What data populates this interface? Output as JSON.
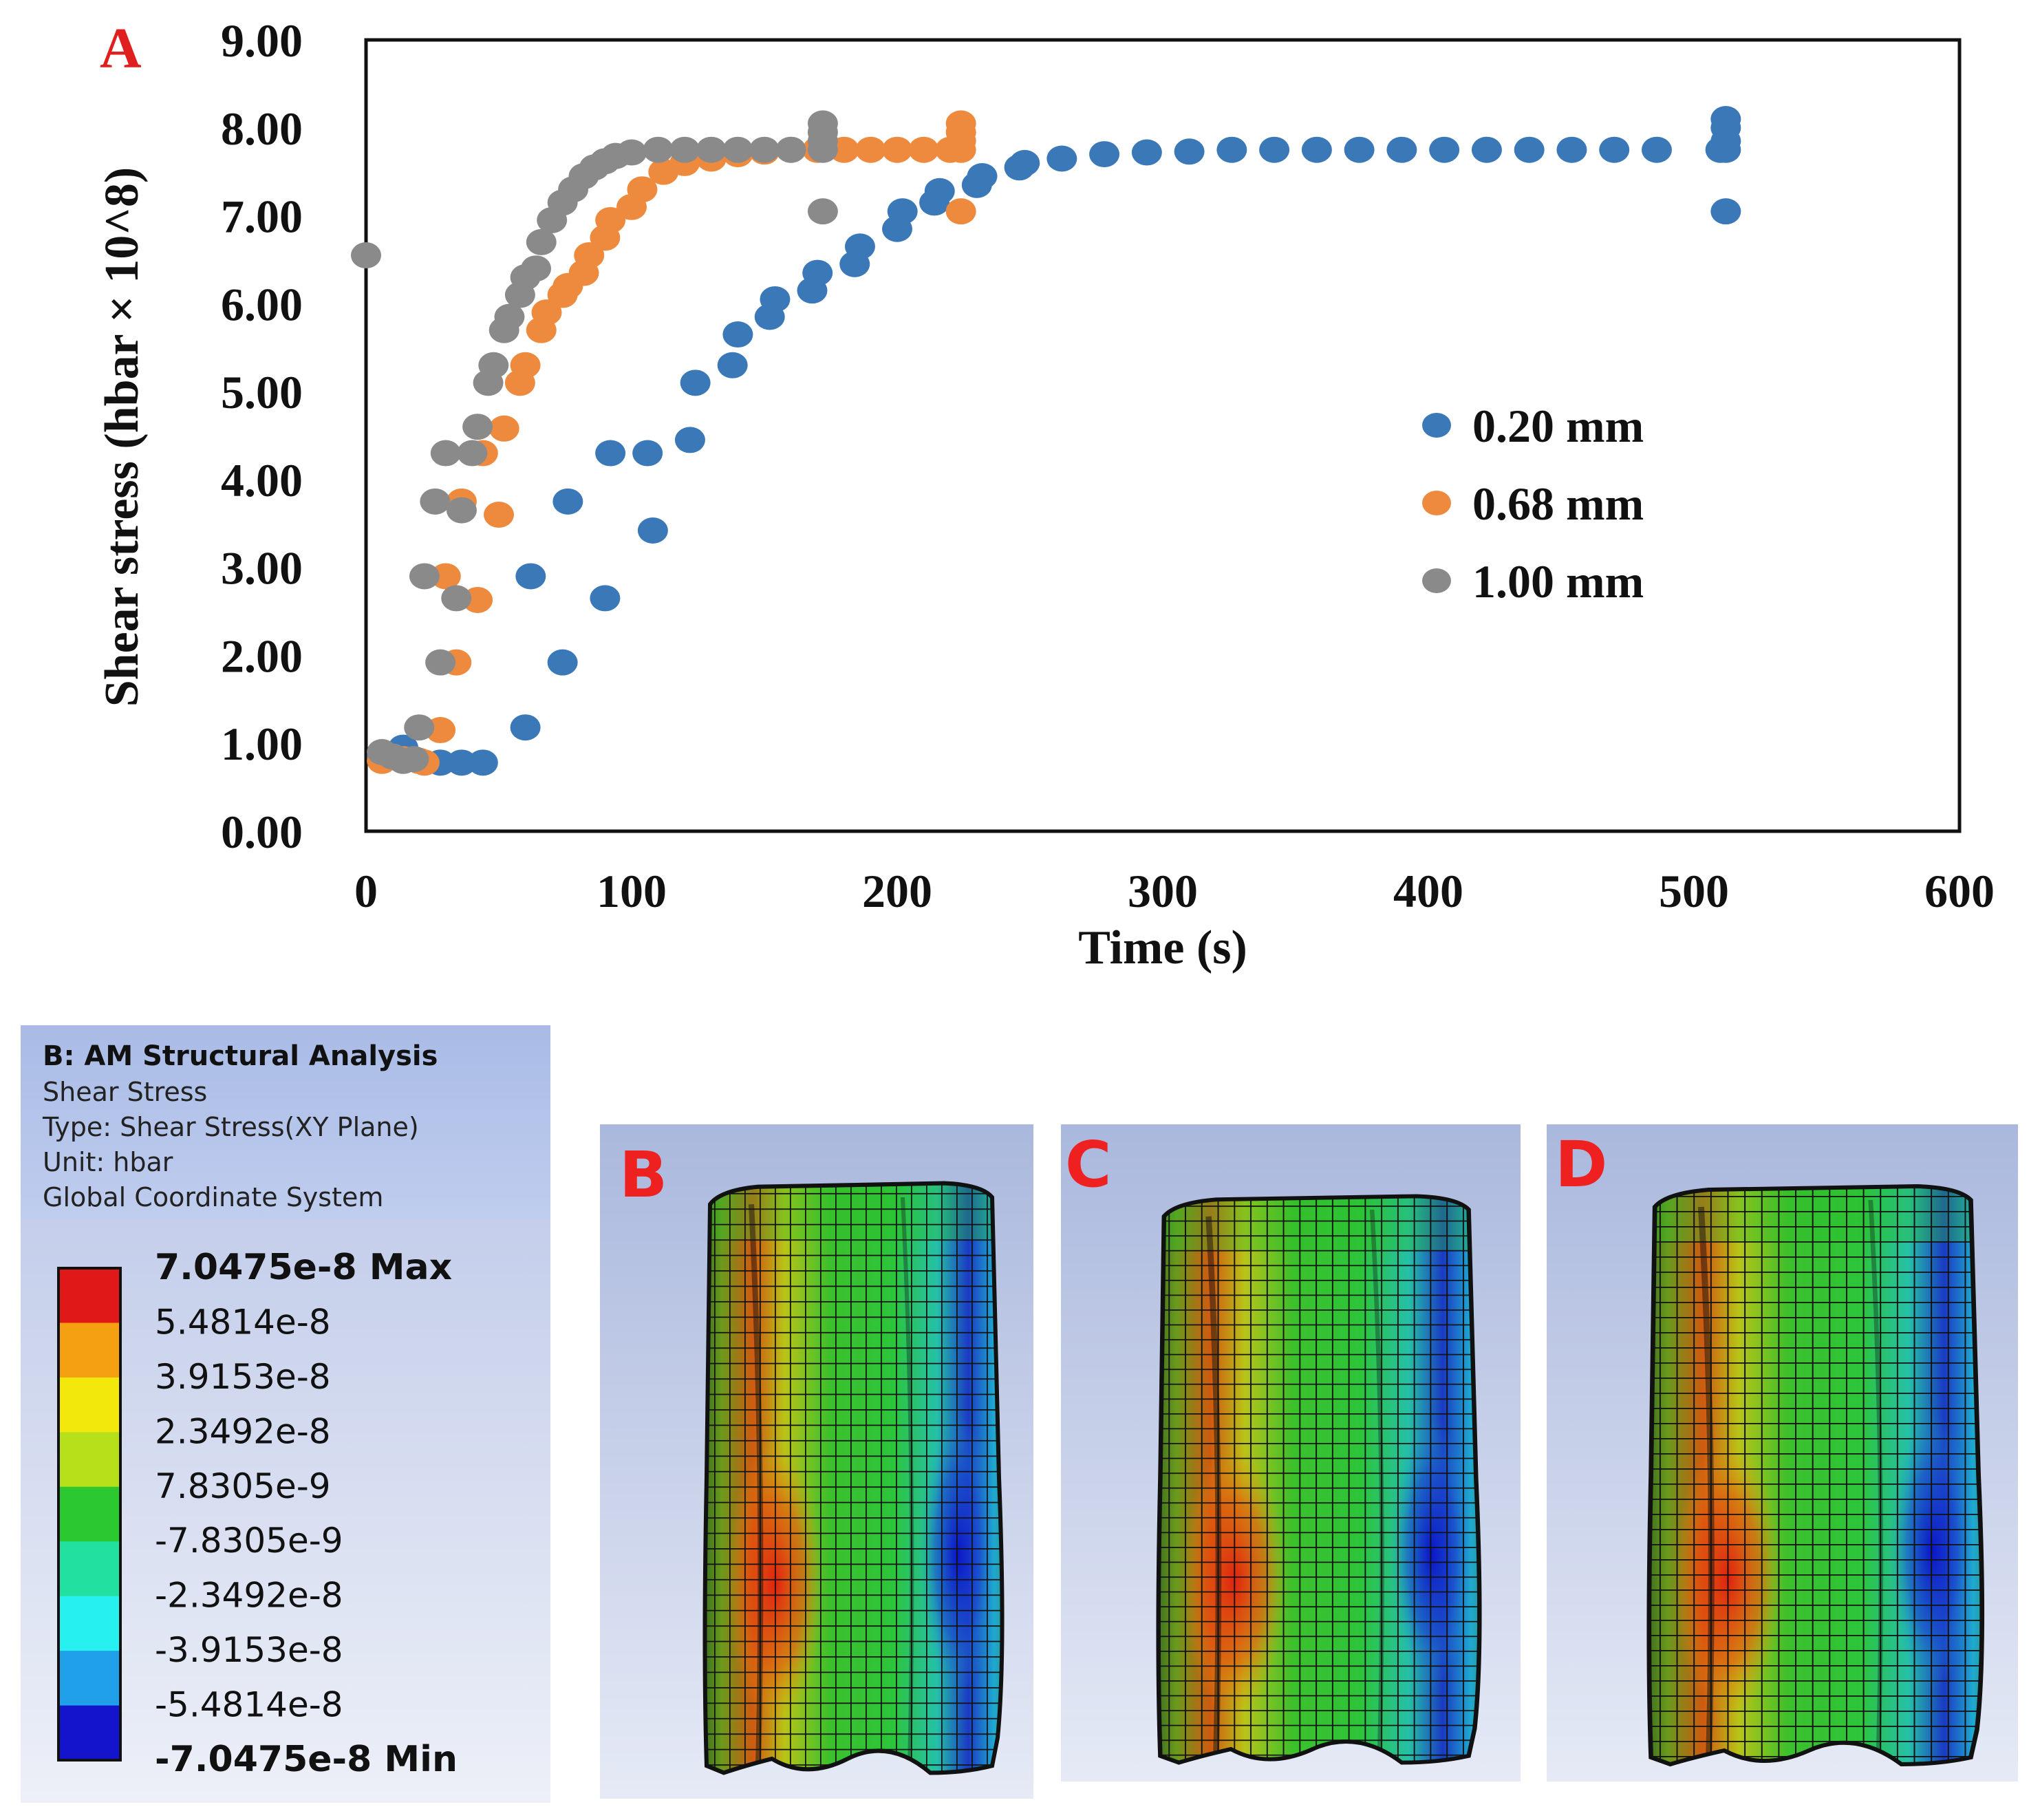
{
  "panel_a_label": "A",
  "chart_data": {
    "type": "scatter",
    "xlabel": "Time (s)",
    "ylabel": "Shear stress (hbar × 10^8)",
    "xlim": [
      0,
      600
    ],
    "ylim": [
      0,
      9
    ],
    "xticks": [
      "0",
      "100",
      "200",
      "300",
      "400",
      "500",
      "600"
    ],
    "yticks": [
      "0.00",
      "1.00",
      "2.00",
      "3.00",
      "4.00",
      "5.00",
      "6.00",
      "7.00",
      "8.00",
      "9.00"
    ],
    "grid": false,
    "legend_position": "right",
    "series": [
      {
        "name": "0.20 mm",
        "color": "#3a78b8",
        "x": [
          6,
          14,
          20,
          28,
          36,
          44,
          60,
          62,
          74,
          76,
          90,
          92,
          106,
          108,
          122,
          124,
          138,
          140,
          152,
          154,
          168,
          170,
          184,
          186,
          200,
          202,
          214,
          216,
          230,
          232,
          246,
          248,
          262,
          278,
          294,
          310,
          326,
          342,
          358,
          374,
          390,
          406,
          422,
          438,
          454,
          470,
          486,
          510,
          512,
          512,
          512,
          512,
          512
        ],
        "y": [
          0.85,
          0.95,
          0.8,
          0.78,
          0.78,
          0.78,
          1.18,
          2.9,
          1.92,
          3.75,
          2.65,
          4.3,
          4.3,
          3.42,
          4.45,
          5.1,
          5.3,
          5.65,
          5.85,
          6.05,
          6.15,
          6.35,
          6.45,
          6.65,
          6.85,
          7.05,
          7.15,
          7.28,
          7.35,
          7.45,
          7.55,
          7.6,
          7.65,
          7.7,
          7.72,
          7.73,
          7.75,
          7.75,
          7.75,
          7.75,
          7.75,
          7.75,
          7.75,
          7.75,
          7.75,
          7.75,
          7.75,
          7.75,
          7.75,
          7.85,
          8.0,
          8.1,
          7.05
        ]
      },
      {
        "name": "0.68 mm",
        "color": "#ee8a3e",
        "x": [
          6,
          14,
          20,
          22,
          28,
          30,
          34,
          36,
          42,
          44,
          50,
          52,
          58,
          60,
          66,
          68,
          74,
          76,
          82,
          84,
          90,
          92,
          100,
          104,
          112,
          120,
          130,
          140,
          150,
          160,
          170,
          180,
          190,
          200,
          210,
          220,
          224,
          224,
          224,
          224,
          224
        ],
        "y": [
          0.8,
          0.82,
          0.8,
          0.78,
          1.15,
          2.9,
          1.92,
          3.75,
          2.63,
          4.3,
          3.6,
          4.58,
          5.1,
          5.3,
          5.7,
          5.9,
          6.1,
          6.2,
          6.35,
          6.55,
          6.75,
          6.95,
          7.1,
          7.3,
          7.5,
          7.6,
          7.65,
          7.7,
          7.73,
          7.75,
          7.75,
          7.75,
          7.75,
          7.75,
          7.75,
          7.75,
          7.75,
          7.85,
          7.95,
          8.05,
          7.05
        ]
      },
      {
        "name": "1.00 mm",
        "color": "#8a8a8a",
        "x": [
          0,
          6,
          10,
          14,
          18,
          20,
          22,
          26,
          28,
          30,
          34,
          36,
          40,
          42,
          46,
          48,
          52,
          54,
          58,
          60,
          64,
          66,
          70,
          74,
          78,
          82,
          86,
          90,
          94,
          100,
          110,
          120,
          130,
          140,
          150,
          160,
          172,
          172,
          172,
          172,
          172
        ],
        "y": [
          6.55,
          0.9,
          0.85,
          0.8,
          0.82,
          1.18,
          2.9,
          3.75,
          1.92,
          4.3,
          2.65,
          3.65,
          4.3,
          4.6,
          5.1,
          5.3,
          5.7,
          5.85,
          6.1,
          6.3,
          6.4,
          6.7,
          6.95,
          7.15,
          7.3,
          7.45,
          7.55,
          7.62,
          7.68,
          7.72,
          7.75,
          7.75,
          7.75,
          7.75,
          7.75,
          7.75,
          7.75,
          7.85,
          7.95,
          8.05,
          7.05
        ]
      }
    ]
  },
  "colorbar": {
    "title": "B: AM Structural Analysis",
    "lines": [
      "Shear Stress",
      "Type: Shear Stress(XY Plane)",
      "Unit: hbar",
      "Global Coordinate System"
    ],
    "levels": [
      "7.0475e-8 Max",
      "5.4814e-8",
      "3.9153e-8",
      "2.3492e-8",
      "7.8305e-9",
      "-7.8305e-9",
      "-2.3492e-8",
      "-3.9153e-8",
      "-5.4814e-8",
      "-7.0475e-8 Min"
    ],
    "colors": [
      "#e01818",
      "#f5a010",
      "#f2e80c",
      "#b6e01a",
      "#2cc830",
      "#22e0a0",
      "#26f0f0",
      "#1fa0e8",
      "#1414cc"
    ]
  },
  "panels": [
    {
      "label": "B"
    },
    {
      "label": "C"
    },
    {
      "label": "D"
    }
  ]
}
